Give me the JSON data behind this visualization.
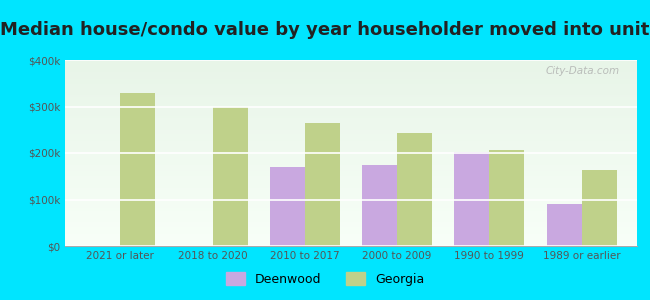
{
  "title": "Median house/condo value by year householder moved into unit",
  "categories": [
    "2021 or later",
    "2018 to 2020",
    "2010 to 2017",
    "2000 to 2009",
    "1990 to 1999",
    "1989 or earlier"
  ],
  "deenwood": [
    null,
    null,
    170000,
    175000,
    202000,
    90000
  ],
  "georgia": [
    330000,
    298000,
    265000,
    242000,
    207000,
    163000
  ],
  "deenwood_color": "#c9a8e0",
  "georgia_color": "#bfd18a",
  "background_outer": "#00e5ff",
  "background_inner_top": "#e8f5e8",
  "background_inner_bottom": "#f5fff5",
  "ylim": [
    0,
    400000
  ],
  "yticks": [
    0,
    100000,
    200000,
    300000,
    400000
  ],
  "ytick_labels": [
    "$0",
    "$100k",
    "$200k",
    "$300k",
    "$400k"
  ],
  "bar_width": 0.38,
  "title_fontsize": 13,
  "legend_labels": [
    "Deenwood",
    "Georgia"
  ],
  "watermark": "City-Data.com"
}
